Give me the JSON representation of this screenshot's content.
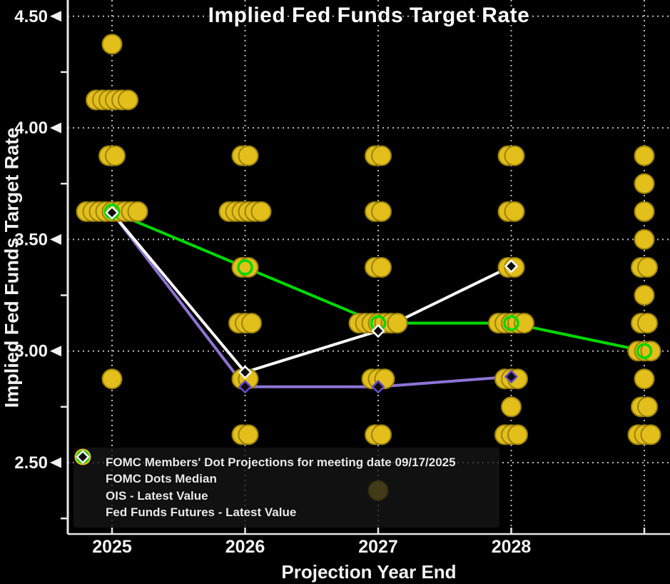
{
  "background": "#000000",
  "chart_data": {
    "type": "scatter",
    "title": "Implied Fed Funds Target Rate",
    "xlabel": "Projection Year End",
    "ylabel": "Implied Fed Funds Target Rate",
    "x_categories": [
      "2025",
      "2026",
      "2027",
      "2028",
      ""
    ],
    "y_ticks_major": [
      {
        "label": "4.50",
        "value": 4.5
      },
      {
        "label": "4.00",
        "value": 4.0
      },
      {
        "label": "3.50",
        "value": 3.5
      },
      {
        "label": "3.00",
        "value": 3.0
      },
      {
        "label": "2.50",
        "value": 2.5
      }
    ],
    "y_ticks_minor_values": [
      4.25,
      3.75,
      3.25,
      2.75,
      2.25
    ],
    "ylim": [
      2.2,
      4.55
    ],
    "grid": true,
    "legend_position": "lower-left",
    "colors": {
      "dots": "#e3bf1c",
      "dots_edge": "#9c820a",
      "median_line": "#00d900",
      "ois_line": "#8d74d4",
      "ois_marker": "#6a48cc",
      "futures_line": "#ffffff",
      "axis": "#e8e8e8",
      "gridline": "#d0d0d0"
    },
    "series": [
      {
        "name": "FOMC Members' Dot Projections for meeting date 09/17/2025",
        "type": "dots",
        "clusters": [
          {
            "x": 0,
            "value": 4.375,
            "count": 1
          },
          {
            "x": 0,
            "value": 4.125,
            "count": 6
          },
          {
            "x": 0,
            "value": 3.875,
            "count": 2
          },
          {
            "x": 0,
            "value": 3.625,
            "count": 9
          },
          {
            "x": 0,
            "value": 2.875,
            "count": 1
          },
          {
            "x": 1,
            "value": 3.875,
            "count": 2
          },
          {
            "x": 1,
            "value": 3.625,
            "count": 6
          },
          {
            "x": 1,
            "value": 3.375,
            "count": 2
          },
          {
            "x": 1,
            "value": 3.125,
            "count": 3
          },
          {
            "x": 1,
            "value": 2.875,
            "count": 2
          },
          {
            "x": 1,
            "value": 2.625,
            "count": 2
          },
          {
            "x": 2,
            "value": 3.875,
            "count": 2
          },
          {
            "x": 2,
            "value": 3.625,
            "count": 2
          },
          {
            "x": 2,
            "value": 3.375,
            "count": 2
          },
          {
            "x": 2,
            "value": 3.125,
            "count": 7
          },
          {
            "x": 2,
            "value": 2.875,
            "count": 3
          },
          {
            "x": 2,
            "value": 2.625,
            "count": 2
          },
          {
            "x": 2,
            "value": 2.375,
            "count": 1
          },
          {
            "x": 3,
            "value": 3.875,
            "count": 2
          },
          {
            "x": 3,
            "value": 3.625,
            "count": 2
          },
          {
            "x": 3,
            "value": 3.375,
            "count": 2
          },
          {
            "x": 3,
            "value": 3.125,
            "count": 5
          },
          {
            "x": 3,
            "value": 2.875,
            "count": 3
          },
          {
            "x": 3,
            "value": 2.75,
            "count": 1
          },
          {
            "x": 3,
            "value": 2.625,
            "count": 3
          },
          {
            "x": 4,
            "value": 3.875,
            "count": 1
          },
          {
            "x": 4,
            "value": 3.75,
            "count": 1
          },
          {
            "x": 4,
            "value": 3.625,
            "count": 1
          },
          {
            "x": 4,
            "value": 3.5,
            "count": 1
          },
          {
            "x": 4,
            "value": 3.375,
            "count": 2
          },
          {
            "x": 4,
            "value": 3.25,
            "count": 1
          },
          {
            "x": 4,
            "value": 3.125,
            "count": 2
          },
          {
            "x": 4,
            "value": 3.0,
            "count": 3
          },
          {
            "x": 4,
            "value": 2.875,
            "count": 1
          },
          {
            "x": 4,
            "value": 2.75,
            "count": 2
          },
          {
            "x": 4,
            "value": 2.625,
            "count": 3
          }
        ]
      },
      {
        "name": "FOMC Dots Median",
        "type": "line",
        "marker": "open-circle",
        "points": [
          {
            "x": 0,
            "value": 3.625
          },
          {
            "x": 1,
            "value": 3.375
          },
          {
            "x": 2,
            "value": 3.125
          },
          {
            "x": 3,
            "value": 3.125
          },
          {
            "x": 4,
            "value": 3.0
          }
        ]
      },
      {
        "name": "OIS - Latest Value",
        "type": "line",
        "marker": "open-diamond",
        "points": [
          {
            "x": 0,
            "value": 3.62
          },
          {
            "x": 1,
            "value": 2.84
          },
          {
            "x": 2,
            "value": 2.84
          },
          {
            "x": 3,
            "value": 2.885
          }
        ]
      },
      {
        "name": "Fed Funds Futures - Latest Value",
        "type": "line",
        "marker": "open-diamond",
        "points": [
          {
            "x": 0,
            "value": 3.62
          },
          {
            "x": 1,
            "value": 2.905
          },
          {
            "x": 2,
            "value": 3.09
          },
          {
            "x": 3,
            "value": 3.38
          }
        ]
      }
    ],
    "legend": {
      "items": [
        {
          "marker": "filled-circle",
          "color": "#e3bf1c",
          "label": "FOMC Members' Dot Projections for meeting date 09/17/2025"
        },
        {
          "marker": "open-circle",
          "color": "#00d900",
          "label": "FOMC Dots Median"
        },
        {
          "marker": "open-diamond",
          "color": "#6a48cc",
          "label": "OIS - Latest Value"
        },
        {
          "marker": "open-diamond",
          "color": "#ffffff",
          "label": "Fed Funds Futures - Latest Value"
        }
      ]
    }
  }
}
